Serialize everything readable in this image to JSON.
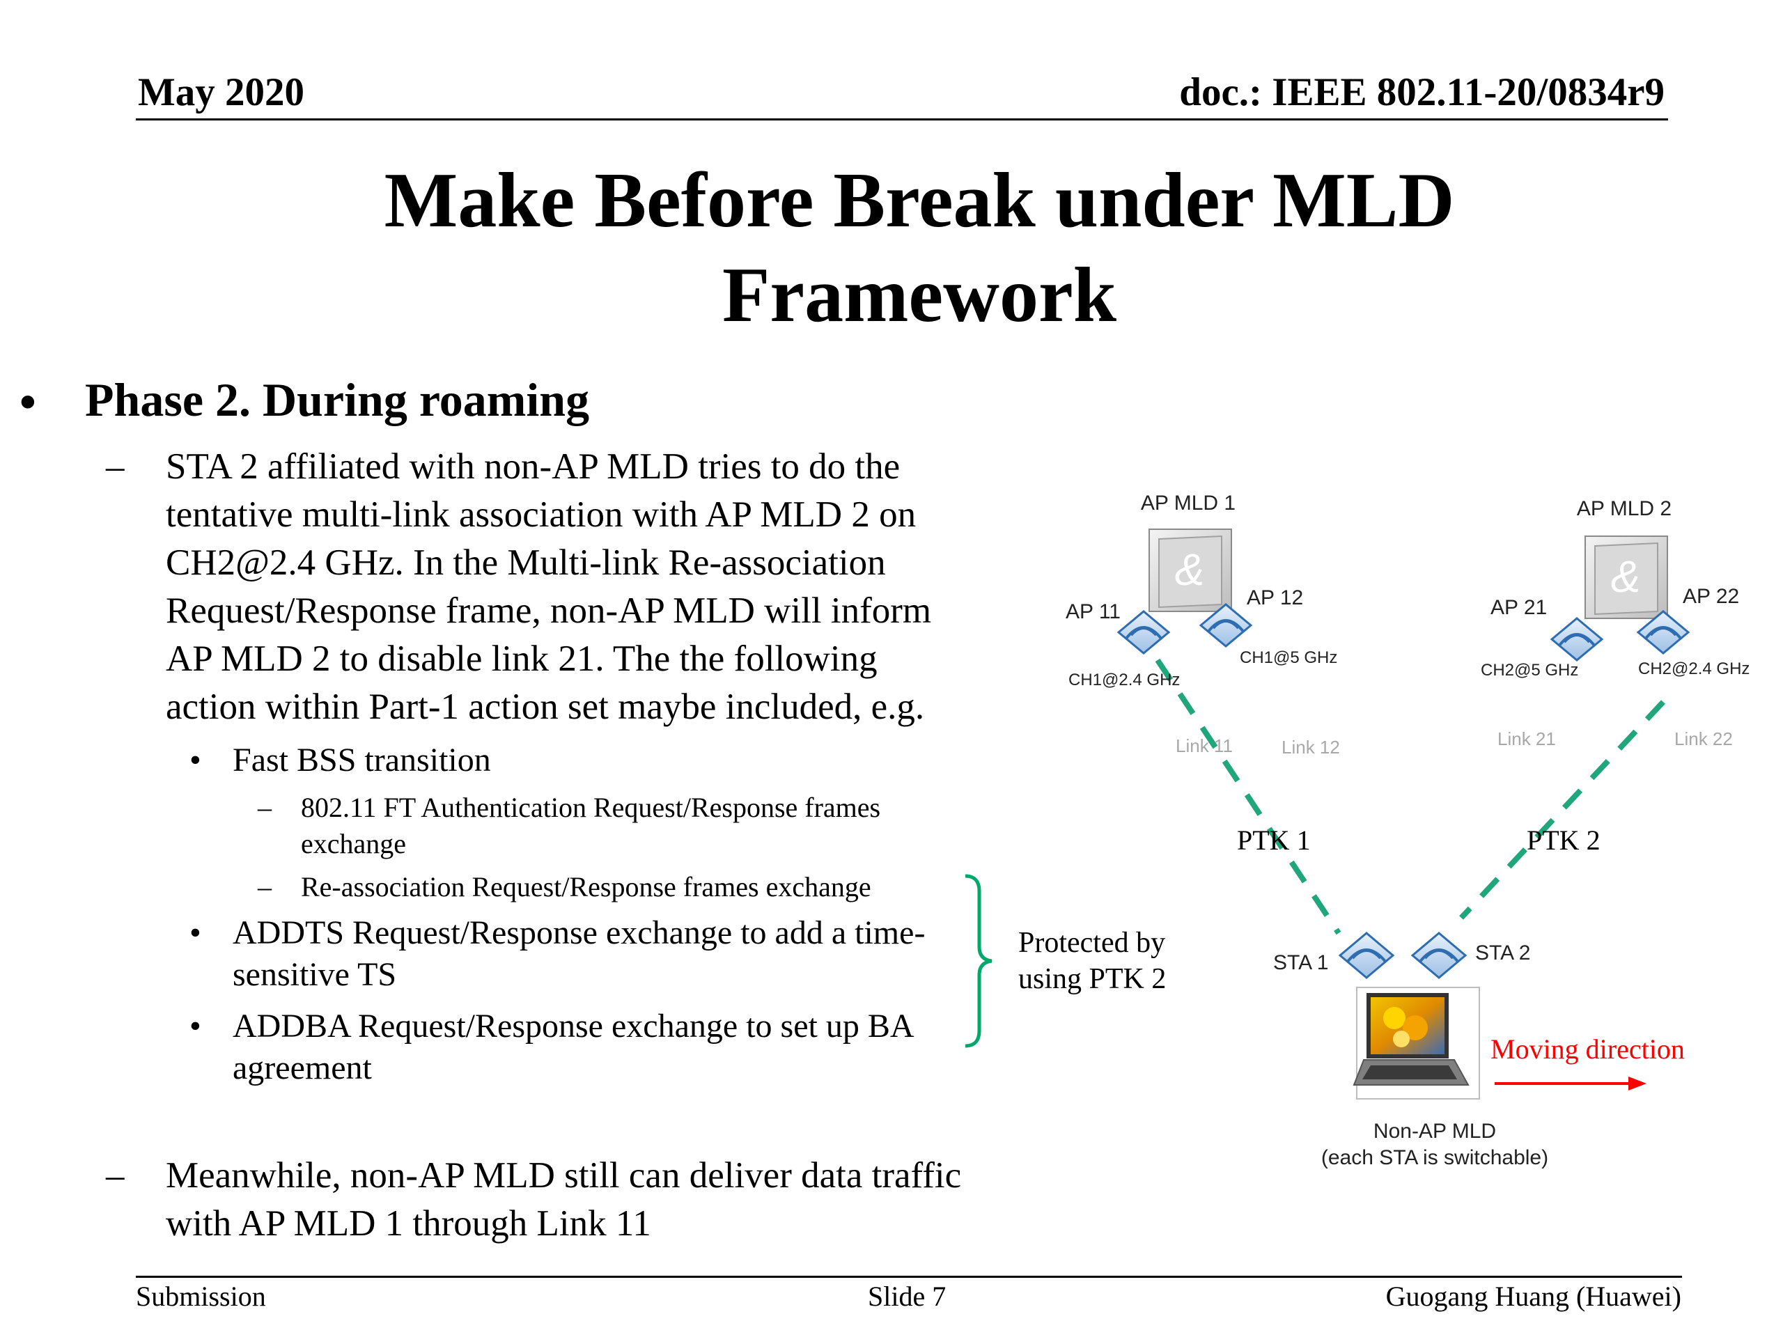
{
  "header": {
    "date": "May 2020",
    "doc": "doc.: IEEE 802.11-20/0834r9"
  },
  "title": {
    "line1": "Make Before Break under MLD",
    "line2": "Framework"
  },
  "content": {
    "bullet_symbol": "•",
    "dash_symbol": "–",
    "phase": "Phase 2. During roaming",
    "para1": [
      "STA 2 affiliated with non-AP MLD tries to do the",
      "tentative multi-link association with AP MLD 2 on",
      "CH2@2.4 GHz. In the Multi-link Re-association",
      "Request/Response frame, non-AP MLD will inform",
      "AP MLD 2 to disable link 21. The the following",
      "action within Part-1 action set maybe included, e.g."
    ],
    "fast_bss": "Fast BSS transition",
    "ft_auth": [
      "802.11 FT Authentication Request/Response frames",
      "exchange"
    ],
    "reassoc": "Re-association Request/Response frames exchange",
    "addts": [
      "ADDTS Request/Response exchange to add a time-",
      "sensitive TS"
    ],
    "addba": [
      "ADDBA Request/Response exchange to set up BA",
      "agreement"
    ],
    "protected": [
      "Protected by",
      "using PTK 2"
    ],
    "meanwhile": [
      "Meanwhile, non-AP MLD still can deliver data traffic",
      "with AP MLD 1 through Link 11"
    ]
  },
  "diagram": {
    "ap_mld1": "AP MLD 1",
    "ap_mld2": "AP MLD 2",
    "ap11": "AP 11",
    "ap12": "AP 12",
    "ap21": "AP 21",
    "ap22": "AP 22",
    "ch_ap11": "CH1@2.4 GHz",
    "ch_ap12": "CH1@5 GHz",
    "ch_ap21": "CH2@5 GHz",
    "ch_ap22": "CH2@2.4 GHz",
    "link11": "Link 11",
    "link12": "Link 12",
    "link21": "Link 21",
    "link22": "Link 22",
    "ptk1": "PTK 1",
    "ptk2": "PTK 2",
    "sta1": "STA 1",
    "sta2": "STA 2",
    "moving": "Moving direction",
    "non_ap_mld": "Non-AP MLD",
    "switchable": "(each STA is switchable)",
    "link_color": "#1fa67a",
    "moving_color": "#ff0000",
    "brace_color": "#00a86b",
    "icons": [
      "server-icon",
      "wifi-antenna-icon",
      "laptop-icon",
      "arrow-right-icon"
    ]
  },
  "footer": {
    "left": "Submission",
    "center": "Slide 7",
    "right": "Guogang Huang (Huawei)"
  }
}
